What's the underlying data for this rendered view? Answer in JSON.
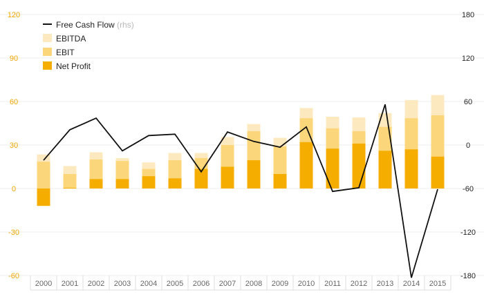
{
  "chart_data": {
    "type": "bar",
    "categories": [
      "2000",
      "2001",
      "2002",
      "2003",
      "2004",
      "2005",
      "2006",
      "2007",
      "2008",
      "2009",
      "2010",
      "2011",
      "2012",
      "2013",
      "2014",
      "2015"
    ],
    "series": [
      {
        "name": "Net Profit",
        "kind": "bar",
        "axis": "left",
        "color": "#f5ae00",
        "values": [
          -12,
          0.5,
          6.5,
          6.5,
          8.5,
          7,
          13.5,
          15,
          19.5,
          10,
          32,
          27.5,
          31,
          26,
          27,
          22
        ]
      },
      {
        "name": "EBIT",
        "kind": "bar",
        "axis": "left",
        "color": "#fcd67a",
        "values": [
          18.5,
          10,
          20,
          19,
          13.5,
          19.5,
          21,
          30,
          39.5,
          29,
          48.5,
          41.5,
          39.5,
          42.5,
          48.5,
          50.5
        ]
      },
      {
        "name": "EBITDA",
        "kind": "bar",
        "axis": "left",
        "color": "#fde9bf",
        "values": [
          23.5,
          15.5,
          25,
          21,
          18,
          24.5,
          24.5,
          35.5,
          44.5,
          35,
          55.5,
          49.5,
          49,
          52,
          61,
          64.5
        ]
      },
      {
        "name": "Free Cash Flow",
        "kind": "line",
        "axis": "right",
        "color": "#111111",
        "values": [
          -21,
          21,
          37,
          -8,
          13,
          15,
          -37,
          18,
          5,
          -3,
          25,
          -64,
          -59,
          56,
          -183,
          -61
        ]
      }
    ],
    "y_left": {
      "min": -60,
      "max": 120,
      "ticks": [
        "120",
        "90",
        "60",
        "30",
        "0",
        "-30",
        "-60"
      ]
    },
    "y_right": {
      "min": -180,
      "max": 180,
      "ticks": [
        "180",
        "120",
        "60",
        "0",
        "-60",
        "-120",
        "-180"
      ]
    },
    "legend": {
      "placement": "top-left",
      "items": [
        {
          "label": "Free Cash Flow",
          "note": "(rhs)",
          "marker": "line",
          "color": "#111111"
        },
        {
          "label": "EBITDA",
          "marker": "box",
          "color": "#fde9bf"
        },
        {
          "label": "EBIT",
          "marker": "box",
          "color": "#fcd67a"
        },
        {
          "label": "Net Profit",
          "marker": "box",
          "color": "#f5ae00"
        }
      ]
    },
    "grid": true,
    "colors": {
      "left_axis": "#f0a500",
      "right_axis": "#222222",
      "grid": "#ececec"
    }
  }
}
